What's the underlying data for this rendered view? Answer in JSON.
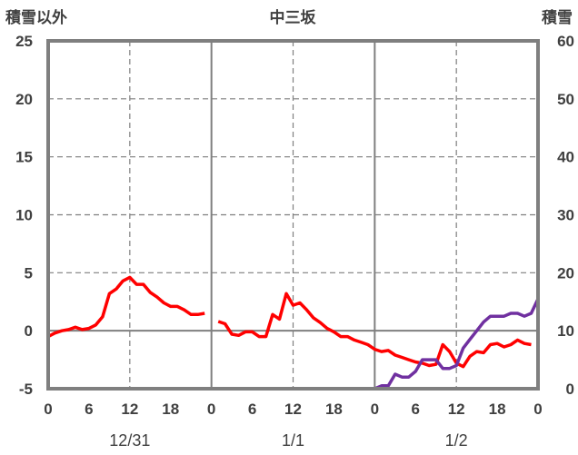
{
  "chart_data": {
    "type": "line",
    "title": "中三坂",
    "left_axis_label": "積雪以外",
    "right_axis_label": "積雪",
    "y_left": {
      "min": -5,
      "max": 25,
      "ticks": [
        -5,
        0,
        5,
        10,
        15,
        20,
        25
      ],
      "tick_labels": [
        "-5",
        "0",
        "5",
        "10",
        "15",
        "20",
        "25"
      ]
    },
    "y_right": {
      "min": 0,
      "max": 60,
      "ticks": [
        0,
        10,
        20,
        30,
        40,
        50,
        60
      ],
      "tick_labels": [
        "0",
        "10",
        "20",
        "30",
        "40",
        "50",
        "60"
      ]
    },
    "x": {
      "min": 0,
      "max": 72,
      "ticks": [
        0,
        6,
        12,
        18,
        24,
        30,
        36,
        42,
        48,
        54,
        60,
        66,
        72
      ],
      "tick_labels": [
        "0",
        "6",
        "12",
        "18",
        "0",
        "6",
        "12",
        "18",
        "0",
        "6",
        "12",
        "18",
        "0"
      ]
    },
    "day_separators": [
      24,
      48
    ],
    "dashed_verticals": [
      12,
      36,
      60
    ],
    "date_labels": [
      {
        "text": "12/31",
        "at": 12
      },
      {
        "text": "1/1",
        "at": 36
      },
      {
        "text": "1/2",
        "at": 60
      }
    ],
    "grid": "horizontal-dashed",
    "colors": {
      "frame": "#7f7f7f",
      "grid": "#7f7f7f",
      "text": "#404040",
      "red_series": "#ff0000",
      "purple_series": "#7030a0"
    },
    "series": [
      {
        "axis": "left",
        "color": "#ff0000",
        "segments": [
          [
            [
              0,
              -0.5
            ],
            [
              1,
              -0.2
            ],
            [
              2,
              0.0
            ],
            [
              3,
              0.1
            ],
            [
              4,
              0.3
            ],
            [
              5,
              0.1
            ],
            [
              6,
              0.2
            ],
            [
              7,
              0.5
            ],
            [
              8,
              1.2
            ],
            [
              9,
              3.2
            ],
            [
              10,
              3.6
            ],
            [
              11,
              4.3
            ],
            [
              12,
              4.6
            ],
            [
              13,
              4.0
            ],
            [
              14,
              4.0
            ],
            [
              15,
              3.3
            ],
            [
              16,
              2.9
            ],
            [
              17,
              2.4
            ],
            [
              18,
              2.1
            ],
            [
              19,
              2.1
            ],
            [
              20,
              1.8
            ],
            [
              21,
              1.4
            ],
            [
              22,
              1.4
            ],
            [
              23,
              1.5
            ]
          ],
          [
            [
              25,
              0.8
            ],
            [
              26,
              0.6
            ],
            [
              27,
              -0.3
            ],
            [
              28,
              -0.4
            ],
            [
              29,
              -0.1
            ],
            [
              30,
              -0.1
            ],
            [
              31,
              -0.5
            ],
            [
              32,
              -0.5
            ],
            [
              33,
              1.4
            ],
            [
              34,
              1.0
            ],
            [
              35,
              3.2
            ],
            [
              36,
              2.2
            ],
            [
              37,
              2.4
            ],
            [
              38,
              1.8
            ],
            [
              39,
              1.1
            ],
            [
              40,
              0.7
            ],
            [
              41,
              0.2
            ],
            [
              42,
              -0.1
            ],
            [
              43,
              -0.5
            ],
            [
              44,
              -0.5
            ],
            [
              45,
              -0.8
            ],
            [
              46,
              -1.0
            ],
            [
              47,
              -1.2
            ],
            [
              48,
              -1.6
            ],
            [
              49,
              -1.8
            ],
            [
              50,
              -1.7
            ],
            [
              51,
              -2.1
            ],
            [
              52,
              -2.3
            ],
            [
              53,
              -2.5
            ],
            [
              54,
              -2.7
            ],
            [
              55,
              -2.8
            ],
            [
              56,
              -3.0
            ],
            [
              57,
              -2.9
            ],
            [
              58,
              -1.2
            ],
            [
              59,
              -1.8
            ],
            [
              60,
              -2.8
            ],
            [
              61,
              -3.1
            ],
            [
              62,
              -2.2
            ],
            [
              63,
              -1.8
            ],
            [
              64,
              -1.9
            ],
            [
              65,
              -1.2
            ],
            [
              66,
              -1.1
            ],
            [
              67,
              -1.4
            ],
            [
              68,
              -1.2
            ],
            [
              69,
              -0.8
            ],
            [
              70,
              -1.1
            ],
            [
              71,
              -1.2
            ]
          ]
        ]
      },
      {
        "axis": "right",
        "color": "#7030a0",
        "segments": [
          [
            [
              0,
              0
            ],
            [
              23,
              0
            ]
          ],
          [
            [
              24,
              0
            ],
            [
              48,
              0
            ],
            [
              49,
              0.5
            ],
            [
              50,
              0.5
            ],
            [
              51,
              2.5
            ],
            [
              52,
              2
            ],
            [
              53,
              2
            ],
            [
              54,
              3
            ],
            [
              55,
              5
            ],
            [
              56,
              5
            ],
            [
              57,
              5
            ],
            [
              58,
              3.5
            ],
            [
              59,
              3.5
            ],
            [
              60,
              4
            ],
            [
              61,
              7
            ],
            [
              62,
              8.5
            ],
            [
              63,
              10
            ],
            [
              64,
              11.5
            ],
            [
              65,
              12.5
            ],
            [
              66,
              12.5
            ],
            [
              67,
              12.5
            ],
            [
              68,
              13
            ],
            [
              69,
              13
            ],
            [
              70,
              12.5
            ],
            [
              71,
              13
            ],
            [
              72,
              15.5
            ]
          ]
        ]
      }
    ]
  }
}
